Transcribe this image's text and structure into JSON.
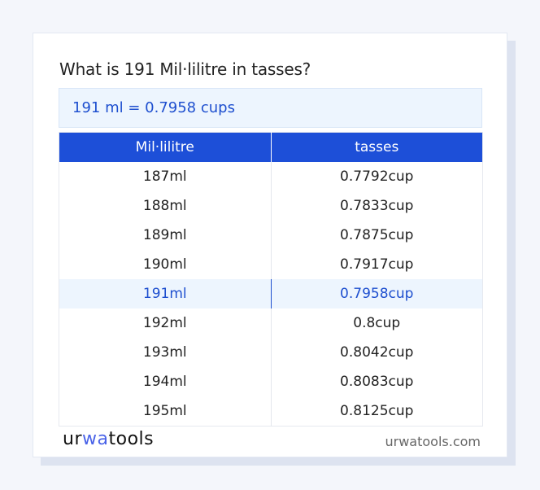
{
  "title": "What is 191 Mil·lilitre in tasses?",
  "result": "191 ml = 0.7958 cups",
  "table": {
    "headers": [
      "Mil·lilitre",
      "tasses"
    ],
    "rows": [
      [
        "187ml",
        "0.7792cup"
      ],
      [
        "188ml",
        "0.7833cup"
      ],
      [
        "189ml",
        "0.7875cup"
      ],
      [
        "190ml",
        "0.7917cup"
      ],
      [
        "191ml",
        "0.7958cup"
      ],
      [
        "192ml",
        "0.8cup"
      ],
      [
        "193ml",
        "0.8042cup"
      ],
      [
        "194ml",
        "0.8083cup"
      ],
      [
        "195ml",
        "0.8125cup"
      ]
    ],
    "highlighted_row": 4
  },
  "footer": {
    "logo": {
      "part1": "ur",
      "part2": "wa",
      "part3": "too",
      "part4": "ls"
    },
    "site": "urwatools.com"
  },
  "colors": {
    "accent": "#1d4fd8",
    "highlight_bg": "#edf5fe"
  }
}
